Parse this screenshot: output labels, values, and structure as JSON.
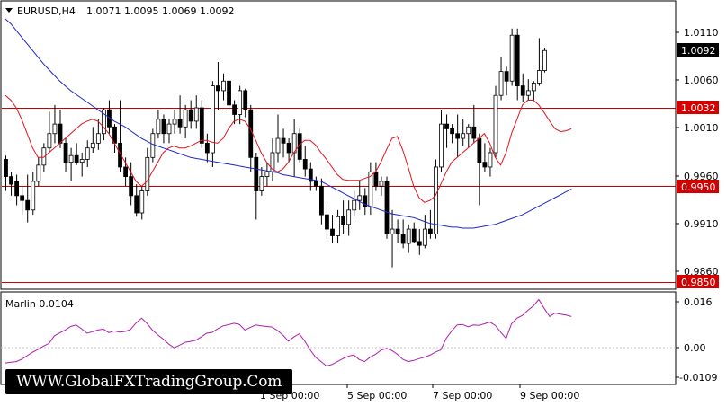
{
  "window": {
    "symbol_title": "EURUSD,H4",
    "ohlc": "1.0071 1.0095 1.0069 1.0092"
  },
  "indicator": {
    "name_value": "Marlin 0.0104",
    "axis_labels": [
      "0.016",
      "0.00",
      "-0.0109"
    ]
  },
  "price_axis": {
    "labels": [
      "1.0110",
      "1.0060",
      "1.0010",
      "0.9960",
      "0.9910",
      "0.9860"
    ],
    "current_price": "1.0092",
    "levels": [
      {
        "value": 1.0032,
        "label": "1.0032"
      },
      {
        "value": 0.995,
        "label": "0.9950"
      },
      {
        "value": 0.985,
        "label": "0.9850"
      }
    ]
  },
  "time_axis": {
    "labels": [
      "1 Sep 00:00",
      "5 Sep 00:00",
      "7 Sep 00:00",
      "9 Sep 00:00"
    ]
  },
  "watermark": "WWW.GlobalFXTradingGroup.Com",
  "colors": {
    "bull_candle": "#ffffff",
    "bear_candle": "#000000",
    "ma_fast": "#e0141e",
    "ma_slow": "#1e28c8",
    "level_line": "#cc0000",
    "oscillator": "#b01cb0"
  },
  "chart_data": {
    "type": "candlestick",
    "ylim": [
      0.9843,
      1.0143
    ],
    "ohlc": [
      [
        0.9978,
        0.9982,
        0.9945,
        0.996
      ],
      [
        0.996,
        0.9965,
        0.994,
        0.9952
      ],
      [
        0.9955,
        0.9962,
        0.993,
        0.994
      ],
      [
        0.994,
        0.995,
        0.992,
        0.9935
      ],
      [
        0.9935,
        0.9962,
        0.9912,
        0.9925
      ],
      [
        0.9925,
        0.9965,
        0.992,
        0.9955
      ],
      [
        0.9955,
        0.998,
        0.995,
        0.9972
      ],
      [
        0.9972,
        0.9995,
        0.9965,
        0.999
      ],
      [
        0.999,
        1.0028,
        0.9985,
        1.0005
      ],
      [
        1.0005,
        1.0035,
        0.9995,
        1.0015
      ],
      [
        1.0015,
        1.003,
        0.999,
        0.9995
      ],
      [
        0.9995,
        1.0,
        0.9965,
        0.9975
      ],
      [
        0.9975,
        0.999,
        0.9955,
        0.9982
      ],
      [
        0.9982,
        0.9995,
        0.9972,
        0.9975
      ],
      [
        0.9975,
        0.9985,
        0.996,
        0.9978
      ],
      [
        0.9978,
        0.9998,
        0.997,
        0.999
      ],
      [
        0.999,
        1.0012,
        0.9985,
        0.9995
      ],
      [
        0.9995,
        1.002,
        0.9988,
        1.0005
      ],
      [
        1.0005,
        1.0032,
        0.9998,
        1.003
      ],
      [
        1.003,
        1.004,
        1.0005,
        1.0012
      ],
      [
        1.0012,
        1.0015,
        0.9985,
        0.9995
      ],
      [
        0.9995,
        1.004,
        0.9965,
        0.997
      ],
      [
        0.997,
        0.998,
        0.995,
        0.996
      ],
      [
        0.996,
        0.9975,
        0.993,
        0.994
      ],
      [
        0.994,
        0.9952,
        0.9918,
        0.9922
      ],
      [
        0.9922,
        0.995,
        0.9915,
        0.9945
      ],
      [
        0.9945,
        0.999,
        0.994,
        0.998
      ],
      [
        0.998,
        1.001,
        0.9975,
        1.0005
      ],
      [
        1.0005,
        1.003,
        1.0,
        1.002
      ],
      [
        1.002,
        1.0025,
        0.9995,
        1.0005
      ],
      [
        1.0005,
        1.002,
        0.9995,
        1.0015
      ],
      [
        1.0015,
        1.003,
        1.0005,
        1.002
      ],
      [
        1.002,
        1.0045,
        1.0005,
        1.0012
      ],
      [
        1.0012,
        1.0035,
        1.0,
        1.003
      ],
      [
        1.003,
        1.004,
        1.001,
        1.0018
      ],
      [
        1.0018,
        1.0045,
        1.001,
        1.0032
      ],
      [
        1.0032,
        1.004,
        0.999,
        0.9995
      ],
      [
        0.9995,
        1.0005,
        0.9975,
        0.9985
      ],
      [
        0.9985,
        1.006,
        0.997,
        1.0055
      ],
      [
        1.0055,
        1.008,
        1.003,
        1.005
      ],
      [
        1.005,
        1.0068,
        1.004,
        1.006
      ],
      [
        1.006,
        1.0062,
        1.003,
        1.0035
      ],
      [
        1.0035,
        1.004,
        1.0015,
        1.0025
      ],
      [
        1.0025,
        1.0055,
        1.0015,
        1.005
      ],
      [
        1.005,
        1.0052,
        1.0022,
        1.003
      ],
      [
        1.003,
        1.0035,
        0.9965,
        0.998
      ],
      [
        0.998,
        0.9985,
        0.9915,
        0.9945
      ],
      [
        0.9945,
        0.997,
        0.994,
        0.996
      ],
      [
        0.996,
        0.9975,
        0.995,
        0.9965
      ],
      [
        0.9965,
        1.0,
        0.9955,
        0.9985
      ],
      [
        0.9985,
        1.0025,
        0.9975,
        1.0
      ],
      [
        1.0,
        1.001,
        0.998,
        0.9995
      ],
      [
        0.9995,
        1.0,
        0.9975,
        0.9985
      ],
      [
        0.9985,
        1.002,
        0.996,
        1.0005
      ],
      [
        1.0005,
        1.001,
        0.9975,
        0.9978
      ],
      [
        0.9978,
        0.9992,
        0.996,
        0.9968
      ],
      [
        0.9968,
        0.9975,
        0.9945,
        0.9955
      ],
      [
        0.9955,
        0.996,
        0.9945,
        0.995
      ],
      [
        0.995,
        0.9958,
        0.991,
        0.992
      ],
      [
        0.992,
        0.9928,
        0.9895,
        0.9905
      ],
      [
        0.9905,
        0.992,
        0.989,
        0.9898
      ],
      [
        0.9898,
        0.9925,
        0.989,
        0.9918
      ],
      [
        0.9918,
        0.9935,
        0.99,
        0.991
      ],
      [
        0.991,
        0.9935,
        0.9898,
        0.9925
      ],
      [
        0.9925,
        0.9945,
        0.9918,
        0.9935
      ],
      [
        0.9935,
        0.9955,
        0.9925,
        0.994
      ],
      [
        0.994,
        0.9948,
        0.992,
        0.9928
      ],
      [
        0.9928,
        0.9975,
        0.992,
        0.9965
      ],
      [
        0.9965,
        0.9975,
        0.9945,
        0.995
      ],
      [
        0.995,
        0.996,
        0.994,
        0.9955
      ],
      [
        0.9955,
        0.996,
        0.9895,
        0.99
      ],
      [
        0.99,
        0.9925,
        0.9865,
        0.9905
      ],
      [
        0.9905,
        0.9915,
        0.989,
        0.99
      ],
      [
        0.99,
        0.9915,
        0.9885,
        0.989
      ],
      [
        0.989,
        0.991,
        0.988,
        0.9905
      ],
      [
        0.9905,
        0.9912,
        0.989,
        0.9892
      ],
      [
        0.9892,
        0.9905,
        0.9878,
        0.9888
      ],
      [
        0.9888,
        0.992,
        0.9885,
        0.9905
      ],
      [
        0.9905,
        0.9925,
        0.9895,
        0.99
      ],
      [
        0.99,
        0.9978,
        0.9895,
        0.997
      ],
      [
        0.997,
        1.003,
        0.9965,
        1.0015
      ],
      [
        1.0015,
        1.0025,
        0.999,
        1.001
      ],
      [
        1.001,
        1.0015,
        0.9995,
        1.0005
      ],
      [
        1.0005,
        1.0025,
        0.998,
        1.0
      ],
      [
        1.0,
        1.002,
        0.9992,
        1.0005
      ],
      [
        1.0005,
        1.0015,
        0.999,
        1.0012
      ],
      [
        1.0012,
        1.0035,
        0.9995,
        1.0
      ],
      [
        1.0,
        1.0005,
        0.993,
        0.9975
      ],
      [
        0.9975,
        0.9995,
        0.9965,
        0.997
      ],
      [
        0.997,
        0.999,
        0.996,
        0.9985
      ],
      [
        0.9985,
        1.0055,
        0.998,
        1.0045
      ],
      [
        1.0045,
        1.0085,
        1.004,
        1.007
      ],
      [
        1.007,
        1.0075,
        1.0045,
        1.006
      ],
      [
        1.006,
        1.0115,
        1.0055,
        1.0108
      ],
      [
        1.0108,
        1.0115,
        1.004,
        1.0055
      ],
      [
        1.0055,
        1.0068,
        1.0038,
        1.0045
      ],
      [
        1.0045,
        1.0062,
        1.004,
        1.005
      ],
      [
        1.005,
        1.006,
        1.004,
        1.0058
      ],
      [
        1.0058,
        1.0105,
        1.0055,
        1.0071
      ],
      [
        1.0071,
        1.0095,
        1.0069,
        1.0092
      ]
    ],
    "ma_fast": [
      1.0045,
      1.004,
      1.0032,
      1.002,
      1.0005,
      0.999,
      0.998,
      0.998,
      0.9985,
      0.999,
      0.9995,
      1.0,
      1.0005,
      1.001,
      1.0015,
      1.0018,
      1.002,
      1.0018,
      1.0012,
      1.0005,
      0.9995,
      0.9985,
      0.9975,
      0.9965,
      0.9955,
      0.995,
      0.9955,
      0.9965,
      0.9975,
      0.9985,
      0.999,
      0.9992,
      0.999,
      0.999,
      0.9992,
      0.9995,
      0.9998,
      0.9998,
      0.9996,
      0.9995,
      1.0,
      1.001,
      1.0018,
      1.002,
      1.0018,
      1.001,
      0.9998,
      0.9985,
      0.9975,
      0.9968,
      0.9965,
      0.9968,
      0.9975,
      0.9985,
      0.9993,
      0.9998,
      0.9998,
      0.9993,
      0.9985,
      0.9978,
      0.997,
      0.9962,
      0.9957,
      0.9956,
      0.9956,
      0.9956,
      0.9958,
      0.996,
      0.9965,
      0.9975,
      0.9988,
      1.0,
      1.0002,
      0.9988,
      0.997,
      0.995,
      0.9938,
      0.9933,
      0.9935,
      0.994,
      0.9952,
      0.9965,
      0.9975,
      0.998,
      0.9985,
      0.999,
      0.9995,
      1.0,
      1.0005,
      0.9995,
      0.998,
      0.9972,
      0.9985,
      1.0005,
      1.002,
      1.0035,
      1.004,
      1.004,
      1.0035,
      1.0027,
      1.0018,
      1.001,
      1.0007,
      1.0008,
      1.001
    ],
    "ma_slow": [
      1.0125,
      1.012,
      1.0113,
      1.0106,
      1.0099,
      1.0092,
      1.0085,
      1.0078,
      1.0072,
      1.0066,
      1.006,
      1.0055,
      1.005,
      1.0046,
      1.0042,
      1.0038,
      1.0034,
      1.003,
      1.0026,
      1.0022,
      1.0018,
      1.0015,
      1.0012,
      1.0008,
      1.0004,
      1.0,
      0.9997,
      0.9994,
      0.9992,
      0.999,
      0.9988,
      0.9986,
      0.9984,
      0.9982,
      0.998,
      0.9979,
      0.9978,
      0.9977,
      0.9976,
      0.9975,
      0.9974,
      0.9973,
      0.9972,
      0.9971,
      0.997,
      0.9969,
      0.9968,
      0.9967,
      0.9966,
      0.9965,
      0.9964,
      0.9962,
      0.9961,
      0.996,
      0.9959,
      0.9958,
      0.9957,
      0.9956,
      0.9955,
      0.9952,
      0.9949,
      0.9946,
      0.9943,
      0.994,
      0.9937,
      0.9934,
      0.9931,
      0.9929,
      0.9927,
      0.9925,
      0.9923,
      0.9921,
      0.992,
      0.9919,
      0.9918,
      0.9917,
      0.9915,
      0.9913,
      0.9911,
      0.991,
      0.9909,
      0.9908,
      0.9907,
      0.9907,
      0.9906,
      0.9906,
      0.9906,
      0.9907,
      0.9908,
      0.9909,
      0.991,
      0.9912,
      0.9914,
      0.9916,
      0.9918,
      0.992,
      0.9923,
      0.9926,
      0.9929,
      0.9932,
      0.9935,
      0.9938,
      0.9941,
      0.9944,
      0.9947
    ],
    "oscillator": {
      "name": "Marlin",
      "ylim": [
        -0.0125,
        0.0185
      ],
      "values": [
        -0.0055,
        -0.0052,
        -0.005,
        -0.0042,
        -0.003,
        -0.0018,
        -0.0008,
        0.0003,
        0.0012,
        0.0038,
        0.0048,
        0.0058,
        0.007,
        0.0075,
        0.0062,
        0.0047,
        0.0052,
        0.0058,
        0.0061,
        0.0049,
        0.0055,
        0.0051,
        0.0053,
        0.006,
        0.0082,
        0.0098,
        0.0081,
        0.0058,
        0.0041,
        0.0027,
        0.001,
        -0.0003,
        0.0006,
        0.0016,
        0.0019,
        0.0023,
        0.0035,
        0.0047,
        0.005,
        0.0062,
        0.0072,
        0.0076,
        0.0081,
        0.0077,
        0.0058,
        0.0067,
        0.0075,
        0.0072,
        0.007,
        0.0068,
        0.0056,
        0.004,
        0.002,
        0.0034,
        0.0045,
        0.002,
        -0.001,
        -0.0035,
        -0.005,
        -0.0065,
        -0.006,
        -0.005,
        -0.004,
        -0.0032,
        -0.0027,
        -0.0043,
        -0.005,
        -0.0035,
        -0.0025,
        -0.0011,
        -0.0005,
        -0.0012,
        -0.0025,
        -0.0042,
        -0.005,
        -0.0046,
        -0.004,
        -0.0035,
        -0.0028,
        -0.0018,
        -0.001,
        0.003,
        0.0055,
        0.0075,
        0.0077,
        0.0069,
        0.0075,
        0.0074,
        0.0079,
        0.0085,
        0.0074,
        0.0051,
        0.0029,
        0.0079,
        0.0098,
        0.0108,
        0.0125,
        0.014,
        0.0162,
        0.0132,
        0.0104,
        0.0116,
        0.0112,
        0.0109,
        0.0104
      ]
    }
  }
}
